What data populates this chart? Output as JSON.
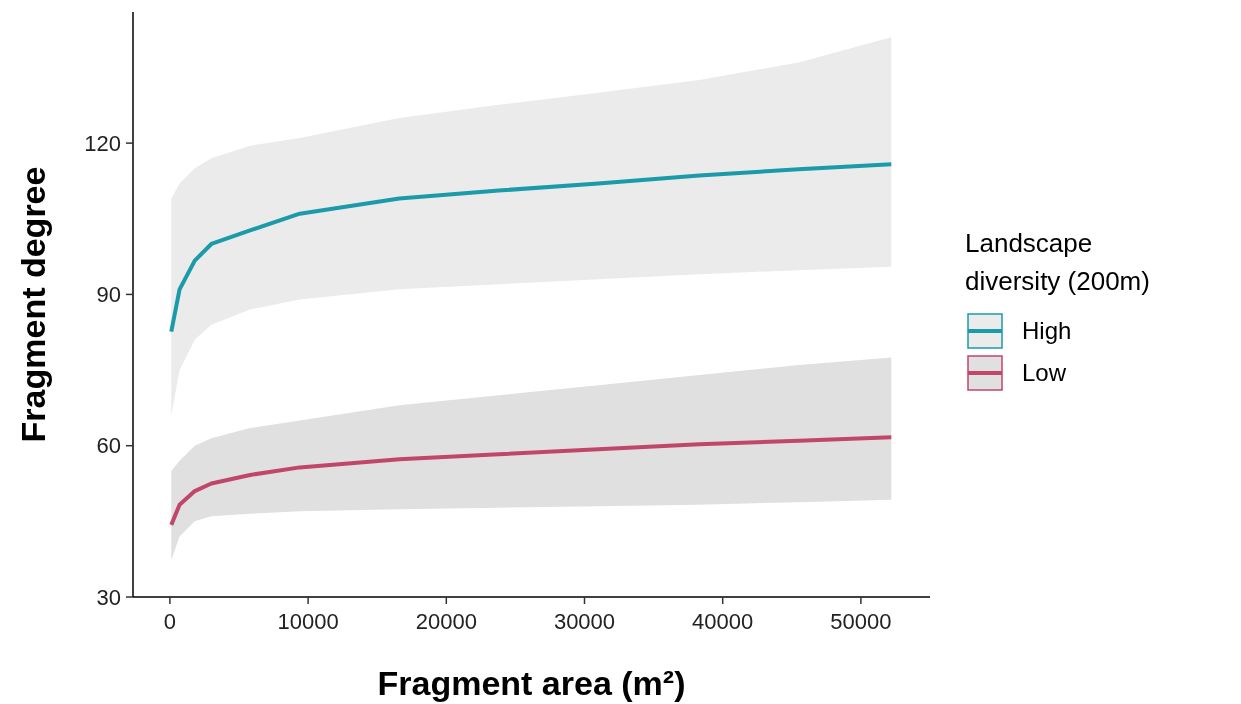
{
  "chart_data": {
    "type": "line",
    "xlabel": "Fragment area (m²)",
    "ylabel": "Fragment degree",
    "legend_title": "Landscape diversity (200m)",
    "legend": "right",
    "grid": false,
    "x": [
      100,
      700,
      1800,
      3000,
      5800,
      9400,
      16600,
      23800,
      31000,
      38300,
      45500,
      52200
    ],
    "xlim": [
      -2670,
      55000
    ],
    "xticks": [
      0,
      10000,
      20000,
      30000,
      40000,
      50000
    ],
    "ylim": [
      30,
      146
    ],
    "yticks": [
      30,
      60,
      90,
      120
    ],
    "series": [
      {
        "name": "High",
        "color": "#1b9aaa",
        "values": [
          82.6,
          91,
          96.7,
          100,
          102.7,
          106,
          109,
          110.6,
          112,
          113.6,
          114.8,
          115.8
        ],
        "upper": [
          109,
          112,
          115,
          117,
          119.5,
          121,
          125,
          127.6,
          130,
          132.5,
          136,
          141
        ],
        "lower": [
          66,
          75,
          81,
          84,
          87,
          89,
          91,
          92,
          93,
          94,
          94.8,
          95.5
        ]
      },
      {
        "name": "Low",
        "color": "#c0466a",
        "values": [
          44.3,
          48.3,
          51,
          52.5,
          54.2,
          55.7,
          57.3,
          58.3,
          59.3,
          60.3,
          61,
          61.7
        ],
        "upper": [
          55,
          57,
          60,
          61.5,
          63.5,
          65,
          68,
          70,
          72,
          74,
          76,
          77.5
        ],
        "lower": [
          37.4,
          42,
          45,
          46,
          46.5,
          47,
          47.4,
          47.7,
          48,
          48.3,
          48.8,
          49.3
        ]
      }
    ]
  }
}
